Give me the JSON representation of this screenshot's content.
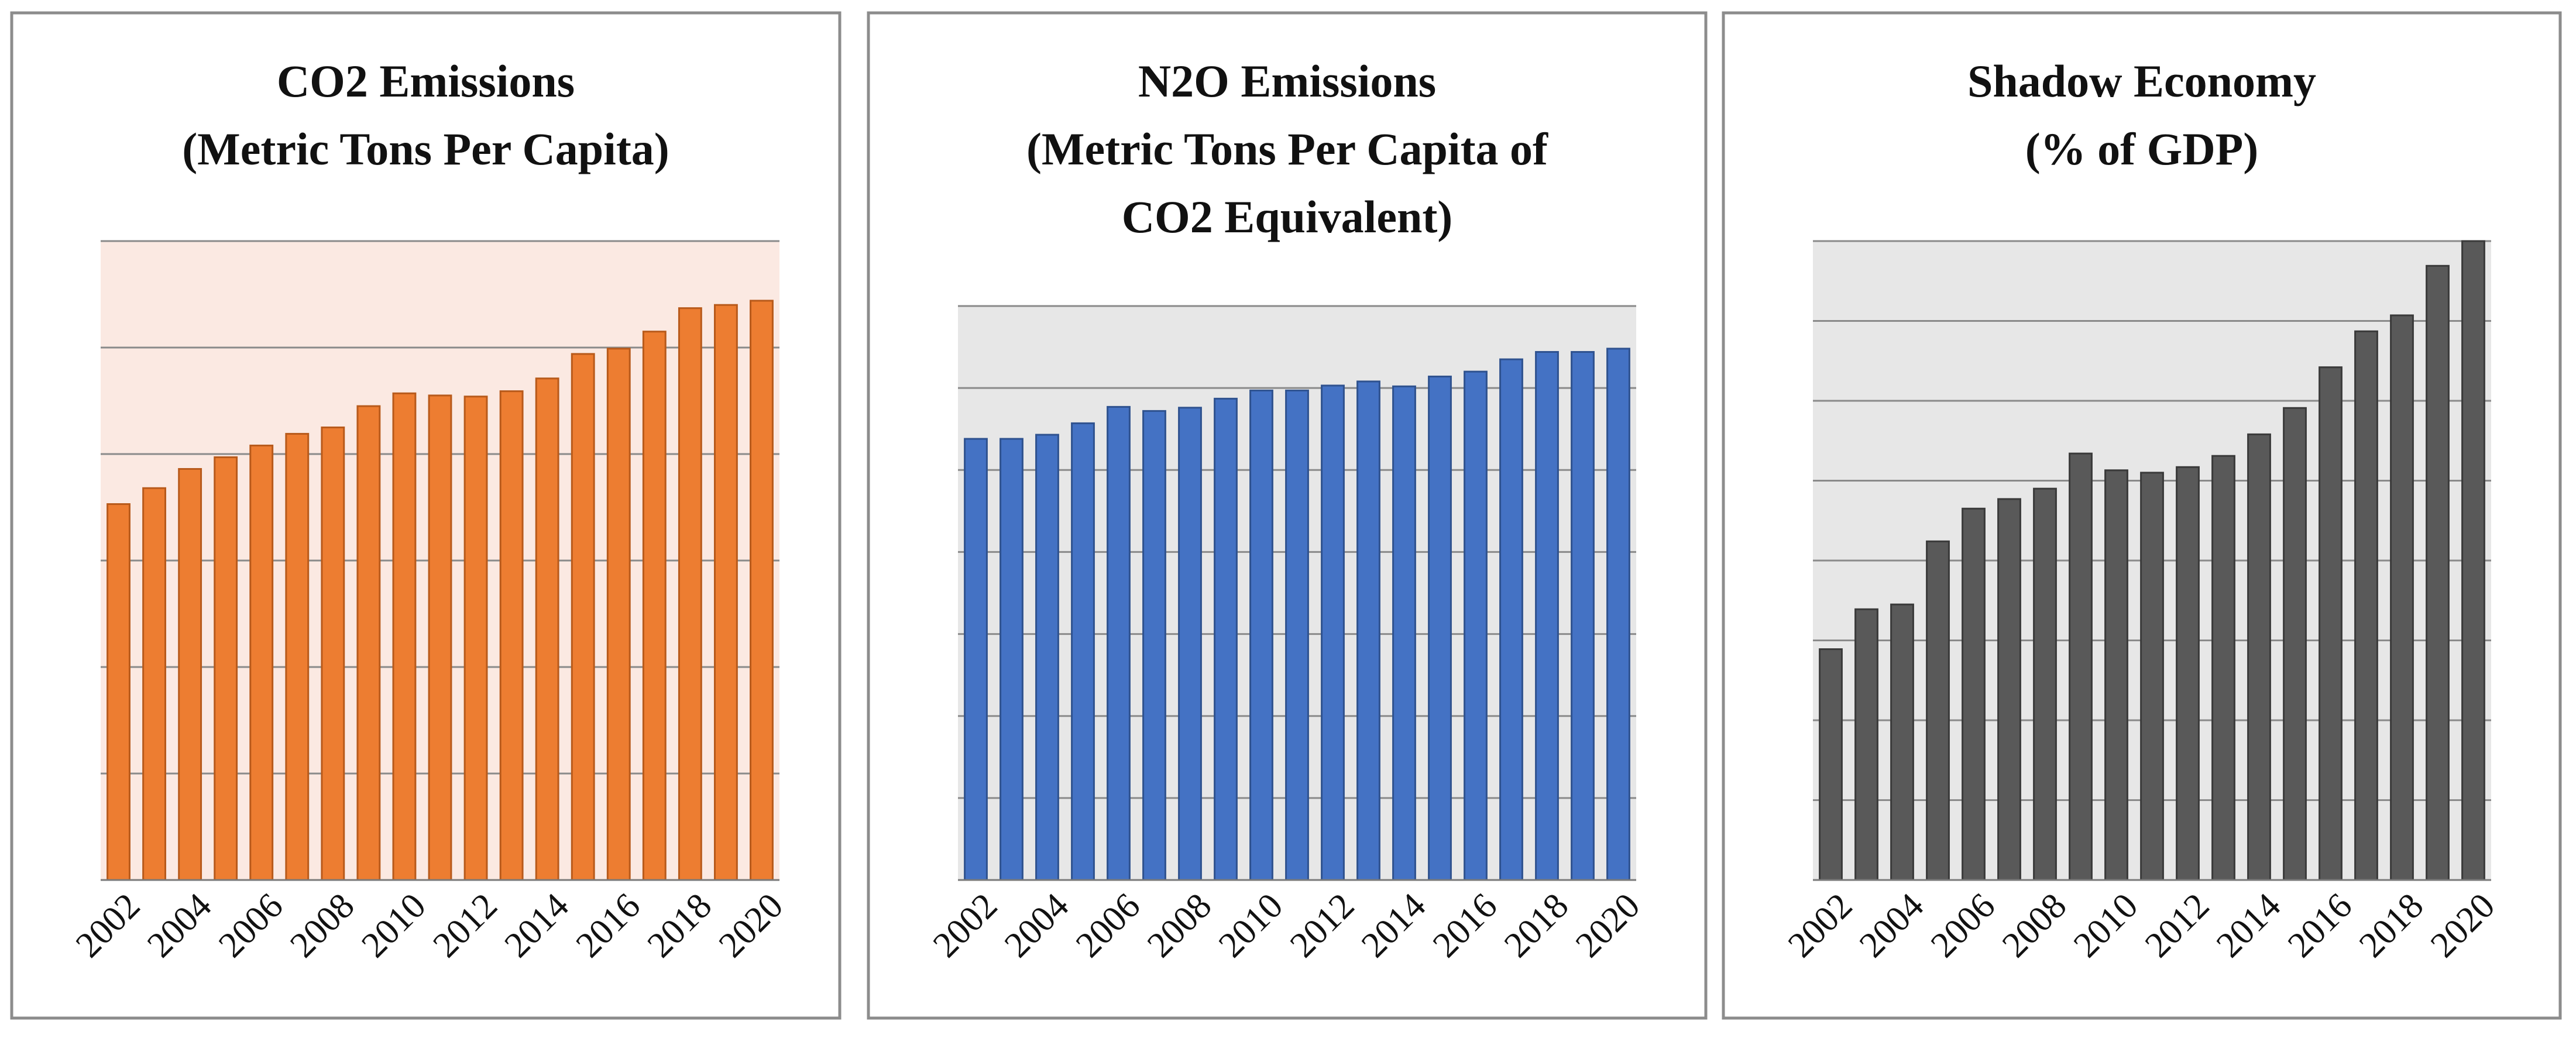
{
  "figure": {
    "panels": 3
  },
  "chart_data": [
    {
      "type": "bar",
      "title_lines": [
        "CO2 Emissions",
        "(Metric Tons Per Capita)"
      ],
      "categories": [
        "2002",
        "2003",
        "2004",
        "2005",
        "2006",
        "2007",
        "2008",
        "2009",
        "2010",
        "2011",
        "2012",
        "2013",
        "2014",
        "2015",
        "2016",
        "2017",
        "2018",
        "2019",
        "2020"
      ],
      "tick_labels": [
        "2002",
        "2004",
        "2006",
        "2008",
        "2010",
        "2012",
        "2014",
        "2016",
        "2018",
        "2020"
      ],
      "values": [
        3.53,
        3.68,
        3.86,
        3.97,
        4.08,
        4.19,
        4.25,
        4.45,
        4.57,
        4.55,
        4.54,
        4.59,
        4.71,
        4.94,
        4.99,
        5.15,
        5.37,
        5.4,
        5.44
      ],
      "ylim": [
        0,
        6
      ],
      "gridlines": 6,
      "show_y_ticks": false,
      "colors": {
        "bar": "#ED7D31",
        "bar_edge": "#B85A1B",
        "plot_bg": "#FBE9E2"
      }
    },
    {
      "type": "bar",
      "title_lines": [
        "N2O Emissions",
        "(Metric Tons Per Capita of",
        "CO2 Equivalent)"
      ],
      "categories": [
        "2002",
        "2003",
        "2004",
        "2005",
        "2006",
        "2007",
        "2008",
        "2009",
        "2010",
        "2011",
        "2012",
        "2013",
        "2014",
        "2015",
        "2016",
        "2017",
        "2018",
        "2019",
        "2020"
      ],
      "tick_labels": [
        "2002",
        "2004",
        "2006",
        "2008",
        "2010",
        "2012",
        "2014",
        "2016",
        "2018",
        "2020"
      ],
      "values": [
        5.38,
        5.38,
        5.43,
        5.57,
        5.77,
        5.72,
        5.76,
        5.87,
        5.97,
        5.97,
        6.03,
        6.08,
        6.02,
        6.14,
        6.2,
        6.35,
        6.44,
        6.44,
        6.48
      ],
      "ylim": [
        0,
        7
      ],
      "gridlines": 7,
      "show_y_ticks": false,
      "colors": {
        "bar": "#4472C4",
        "bar_edge": "#2F528F",
        "plot_bg": "#E7E7E7"
      }
    },
    {
      "type": "bar",
      "title_lines": [
        "Shadow Economy",
        "(% of GDP)"
      ],
      "categories": [
        "2002",
        "2003",
        "2004",
        "2005",
        "2006",
        "2007",
        "2008",
        "2009",
        "2010",
        "2011",
        "2012",
        "2013",
        "2014",
        "2015",
        "2016",
        "2017",
        "2018",
        "2019",
        "2020"
      ],
      "tick_labels": [
        "2002",
        "2004",
        "2006",
        "2008",
        "2010",
        "2012",
        "2014",
        "2016",
        "2018",
        "2020"
      ],
      "values": [
        2.89,
        3.39,
        3.45,
        4.24,
        4.65,
        4.77,
        4.9,
        5.34,
        5.13,
        5.1,
        5.17,
        5.31,
        5.58,
        5.91,
        6.42,
        6.87,
        7.07,
        7.69,
        8.0
      ],
      "ylim": [
        0,
        8
      ],
      "gridlines": 8,
      "show_y_ticks": false,
      "colors": {
        "bar": "#595959",
        "bar_edge": "#3A3A3A",
        "plot_bg": "#E7E7E7"
      }
    }
  ]
}
